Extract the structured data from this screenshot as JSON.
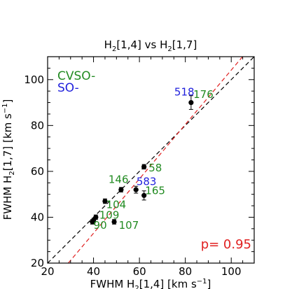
{
  "chart_data": {
    "type": "scatter",
    "title": {
      "main": "H",
      "sub1": "2",
      "mid": "[1,4] vs H",
      "sub2": "2",
      "tail": "[1,7]"
    },
    "xlabel": {
      "pre": "FWHM H",
      "sub": "2",
      "mid": "[1,4] [km s",
      "sup": "−1",
      "post": "]"
    },
    "ylabel": {
      "pre": "FWHM H",
      "sub": "2",
      "mid": "[1,7] [km s",
      "sup": "−1",
      "post": "]"
    },
    "xlim": [
      20,
      110
    ],
    "ylim": [
      20,
      110
    ],
    "xticks": [
      20,
      40,
      60,
      80,
      100
    ],
    "yticks": [
      20,
      40,
      60,
      80,
      100
    ],
    "legend": [
      {
        "label": "CVSO-",
        "color": "#228b22"
      },
      {
        "label": "SO-",
        "color": "#1f1fdc"
      }
    ],
    "points": [
      {
        "x": 82.5,
        "y": 90.0,
        "yerr": 3.0
      },
      {
        "x": 62.0,
        "y": 62.0,
        "yerr": 1.0
      },
      {
        "x": 52.0,
        "y": 52.0,
        "yerr": 1.0
      },
      {
        "x": 58.5,
        "y": 52.0,
        "yerr": 1.5
      },
      {
        "x": 62.0,
        "y": 49.5,
        "yerr": 2.0
      },
      {
        "x": 45.0,
        "y": 47.0,
        "yerr": 1.0
      },
      {
        "x": 41.0,
        "y": 40.0,
        "yerr": 1.0
      },
      {
        "x": 49.0,
        "y": 38.0,
        "yerr": 1.0
      },
      {
        "x": 40.0,
        "y": 38.5,
        "yerr": 1.0
      },
      {
        "x": 39.5,
        "y": 38.0,
        "yerr": 1.0
      }
    ],
    "annotations": [
      {
        "text": "518",
        "x": 75.2,
        "y": 93.0,
        "color": "#1f1fdc"
      },
      {
        "text": "176",
        "x": 83.5,
        "y": 92.0,
        "color": "#228b22"
      },
      {
        "text": "58",
        "x": 64.0,
        "y": 60.0,
        "color": "#228b22"
      },
      {
        "text": "146",
        "x": 46.5,
        "y": 55.0,
        "color": "#228b22"
      },
      {
        "text": "583",
        "x": 58.7,
        "y": 54.0,
        "color": "#1f1fdc"
      },
      {
        "text": "165",
        "x": 62.5,
        "y": 50.0,
        "color": "#228b22"
      },
      {
        "text": "104",
        "x": 45.5,
        "y": 44.0,
        "color": "#228b22"
      },
      {
        "text": "109",
        "x": 42.5,
        "y": 39.3,
        "color": "#228b22"
      },
      {
        "text": "90",
        "x": 40.0,
        "y": 35.0,
        "color": "#228b22"
      },
      {
        "text": "107",
        "x": 51.0,
        "y": 35.0,
        "color": "#228b22"
      }
    ],
    "reference_lines": [
      {
        "style": "dashed",
        "color": "#000000",
        "x1": 20,
        "y1": 20,
        "x2": 110,
        "y2": 110
      },
      {
        "style": "dashed",
        "color": "#e02020",
        "x1": 29,
        "y1": 20,
        "x2": 110,
        "y2": 116
      }
    ],
    "stat_label": {
      "text": "p= 0.95",
      "color": "#e02020"
    }
  }
}
